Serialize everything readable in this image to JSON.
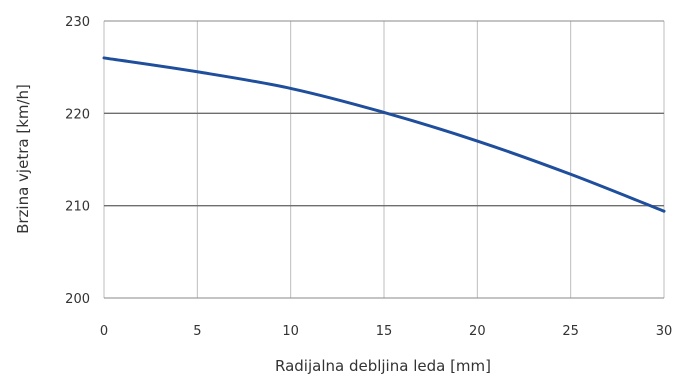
{
  "chart_data": {
    "type": "line",
    "xlabel": "Radijalna debljina leda [mm]",
    "ylabel": "Brzina vjetra [km/h]",
    "xlim": [
      0,
      30
    ],
    "ylim": [
      200,
      230
    ],
    "x_ticks": [
      "0",
      "5",
      "10",
      "15",
      "20",
      "25",
      "30"
    ],
    "y_ticks": [
      "200",
      "210",
      "220",
      "230"
    ],
    "grid": true,
    "legend": "none",
    "line_color": "#1f4e9c",
    "series": [
      {
        "x": [
          0,
          5,
          10,
          15,
          20,
          25,
          30
        ],
        "values": [
          226.0,
          224.5,
          222.7,
          220.1,
          217.0,
          213.4,
          209.4
        ]
      }
    ]
  }
}
